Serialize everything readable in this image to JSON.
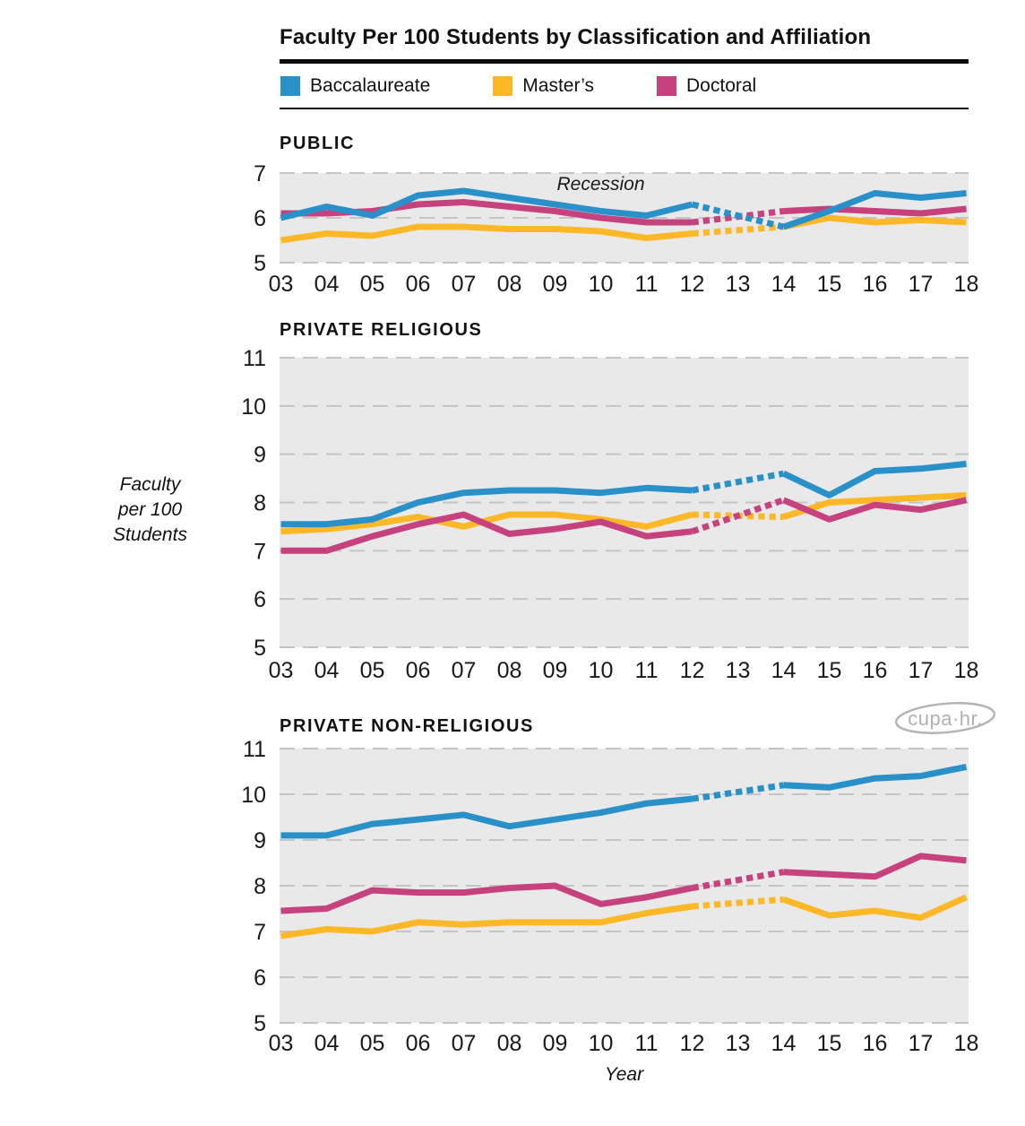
{
  "title": "Faculty Per 100 Students by Classification and Affiliation",
  "legend": {
    "items": [
      {
        "label": "Baccalaureate",
        "color": "#2A90C8"
      },
      {
        "label": "Master’s",
        "color": "#FCB826"
      },
      {
        "label": "Doctoral",
        "color": "#C5427F"
      }
    ]
  },
  "axis_labels": {
    "y": "Faculty per 100 Students",
    "y_lines": [
      "Faculty",
      "per 100",
      "Students"
    ],
    "x": "Year"
  },
  "logo": {
    "text": "cupa·hr."
  },
  "colors": {
    "plot_background": "#E9E9E9",
    "gridline": "#C4C4C4",
    "text": "#1A1A1A",
    "accent_blue": "#2A90C8",
    "accent_gold": "#FCB826",
    "accent_magenta": "#C5427F"
  },
  "chart_data": [
    {
      "type": "line",
      "panel": "PUBLIC",
      "x": [
        "03",
        "04",
        "05",
        "06",
        "07",
        "08",
        "09",
        "10",
        "11",
        "12",
        "13",
        "14",
        "15",
        "16",
        "17",
        "18"
      ],
      "ylim": [
        5,
        7
      ],
      "yticks": [
        7,
        6,
        5
      ],
      "grid": true,
      "dotted_between": [
        "12",
        "14"
      ],
      "annotation": {
        "text": "Recession",
        "x_year": "10",
        "y_value": 6.62
      },
      "series": [
        {
          "name": "Baccalaureate",
          "color": "#2A90C8",
          "values": [
            6.0,
            6.25,
            6.05,
            6.5,
            6.6,
            6.45,
            6.3,
            6.15,
            6.05,
            6.3,
            null,
            5.8,
            6.15,
            6.55,
            6.45,
            6.55
          ]
        },
        {
          "name": "Master’s",
          "color": "#FCB826",
          "values": [
            5.5,
            5.65,
            5.6,
            5.8,
            5.8,
            5.75,
            5.75,
            5.7,
            5.55,
            5.65,
            null,
            5.8,
            6.0,
            5.9,
            5.95,
            5.9
          ]
        },
        {
          "name": "Doctoral",
          "color": "#C5427F",
          "values": [
            6.1,
            6.1,
            6.15,
            6.3,
            6.35,
            6.25,
            6.15,
            6.0,
            5.9,
            5.9,
            null,
            6.15,
            6.2,
            6.15,
            6.1,
            6.2
          ]
        }
      ]
    },
    {
      "type": "line",
      "panel": "PRIVATE RELIGIOUS",
      "x": [
        "03",
        "04",
        "05",
        "06",
        "07",
        "08",
        "09",
        "10",
        "11",
        "12",
        "13",
        "14",
        "15",
        "16",
        "17",
        "18"
      ],
      "ylim": [
        5,
        11
      ],
      "yticks": [
        11,
        10,
        9,
        8,
        7,
        6,
        5
      ],
      "grid": true,
      "dotted_between": [
        "12",
        "14"
      ],
      "annotation": null,
      "series": [
        {
          "name": "Baccalaureate",
          "color": "#2A90C8",
          "values": [
            7.55,
            7.55,
            7.65,
            8.0,
            8.2,
            8.25,
            8.25,
            8.2,
            8.3,
            8.25,
            null,
            8.6,
            8.15,
            8.65,
            8.7,
            8.8
          ]
        },
        {
          "name": "Master’s",
          "color": "#FCB826",
          "values": [
            7.4,
            7.45,
            7.55,
            7.7,
            7.5,
            7.75,
            7.75,
            7.65,
            7.5,
            7.75,
            null,
            7.7,
            8.0,
            8.05,
            8.1,
            8.15
          ]
        },
        {
          "name": "Doctoral",
          "color": "#C5427F",
          "values": [
            7.0,
            7.0,
            7.3,
            7.55,
            7.75,
            7.35,
            7.45,
            7.6,
            7.3,
            7.4,
            null,
            8.05,
            7.65,
            7.95,
            7.85,
            8.05
          ]
        }
      ]
    },
    {
      "type": "line",
      "panel": "PRIVATE NON-RELIGIOUS",
      "x": [
        "03",
        "04",
        "05",
        "06",
        "07",
        "08",
        "09",
        "10",
        "11",
        "12",
        "13",
        "14",
        "15",
        "16",
        "17",
        "18"
      ],
      "ylim": [
        5,
        11
      ],
      "yticks": [
        11,
        10,
        9,
        8,
        7,
        6,
        5
      ],
      "grid": true,
      "dotted_between": [
        "12",
        "14"
      ],
      "annotation": null,
      "series": [
        {
          "name": "Baccalaureate",
          "color": "#2A90C8",
          "values": [
            9.1,
            9.1,
            9.35,
            9.45,
            9.55,
            9.3,
            9.45,
            9.6,
            9.8,
            9.9,
            null,
            10.2,
            10.15,
            10.35,
            10.4,
            10.6
          ]
        },
        {
          "name": "Master’s",
          "color": "#FCB826",
          "values": [
            6.9,
            7.05,
            7.0,
            7.2,
            7.15,
            7.2,
            7.2,
            7.2,
            7.4,
            7.55,
            null,
            7.7,
            7.35,
            7.45,
            7.3,
            7.75
          ]
        },
        {
          "name": "Doctoral",
          "color": "#C5427F",
          "values": [
            7.45,
            7.5,
            7.9,
            7.85,
            7.85,
            7.95,
            8.0,
            7.6,
            7.75,
            7.95,
            null,
            8.3,
            8.25,
            8.2,
            8.65,
            8.55
          ]
        }
      ]
    }
  ]
}
